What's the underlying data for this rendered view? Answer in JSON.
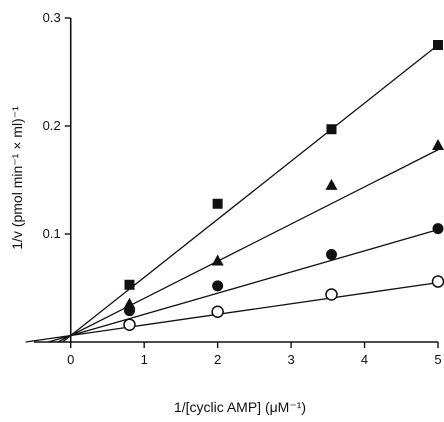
{
  "chart_data": {
    "type": "scatter",
    "xlabel": "1/[cyclic AMP] (μM⁻¹)",
    "ylabel": "1/v (pmol min⁻¹ × ml)⁻¹",
    "xlim": [
      -0.5,
      5
    ],
    "ylim": [
      0,
      0.3
    ],
    "x_ticks": [
      0,
      1,
      2,
      3,
      4,
      5
    ],
    "y_ticks": [
      0.1,
      0.2,
      0.3
    ],
    "x_tick_labels": [
      "0",
      "1",
      "2",
      "3",
      "4",
      "5"
    ],
    "y_tick_labels": [
      "0.1",
      "0.2",
      "0.3"
    ],
    "grid": false,
    "series": [
      {
        "marker": "square-filled",
        "x": [
          0.8,
          2.0,
          3.55,
          5.0
        ],
        "y": [
          0.053,
          0.128,
          0.197,
          0.275
        ],
        "fit": {
          "intercept": 0.006,
          "slope": 0.0538
        }
      },
      {
        "marker": "triangle-filled",
        "x": [
          0.8,
          2.0,
          3.55,
          5.0
        ],
        "y": [
          0.035,
          0.075,
          0.145,
          0.182
        ],
        "fit": {
          "intercept": 0.006,
          "slope": 0.0344
        }
      },
      {
        "marker": "circle-filled",
        "x": [
          0.8,
          2.0,
          3.55,
          5.0
        ],
        "y": [
          0.029,
          0.052,
          0.081,
          0.105
        ],
        "fit": {
          "intercept": 0.006,
          "slope": 0.0196
        }
      },
      {
        "marker": "circle-open",
        "x": [
          0.8,
          2.0,
          3.55,
          5.0
        ],
        "y": [
          0.016,
          0.028,
          0.044,
          0.056
        ],
        "fit": {
          "intercept": 0.006,
          "slope": 0.0098
        }
      }
    ]
  }
}
